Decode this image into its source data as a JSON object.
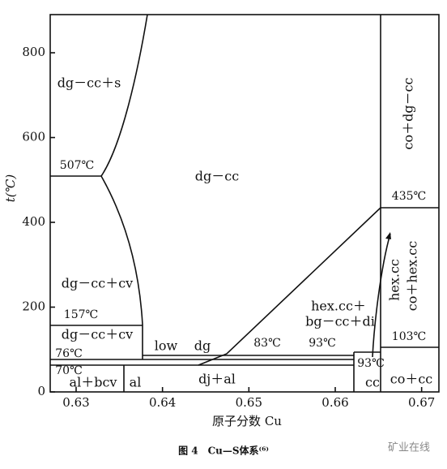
{
  "chart_data": {
    "type": "phase-diagram",
    "y_label": "t(℃)",
    "x_label": "原子分数 Cu",
    "xlim": [
      0.627,
      0.672
    ],
    "ylim": [
      0,
      890
    ],
    "xticks": [
      0.63,
      0.64,
      0.65,
      0.66,
      0.67
    ],
    "yticks": [
      0,
      200,
      400,
      600,
      800
    ],
    "regions": [
      "dg－cc＋s",
      "dg－cc",
      "co＋dg－cc",
      "co＋hex.cc",
      "dg－cc＋cv",
      "dg－cc＋cv",
      "al＋bcv",
      "al",
      "dj＋al",
      "low",
      "dg",
      "hex.cc＋",
      "bg－cc＋di",
      "hex.cc",
      "cc",
      "co＋cc"
    ],
    "temperatures": [
      "507℃",
      "435℃",
      "157℃",
      "76℃",
      "70℃",
      "83℃",
      "93℃",
      "93℃",
      "103℃"
    ],
    "caption": "图 4　Cu—S体系⁽⁶⁾",
    "watermark": "矿业在线"
  }
}
